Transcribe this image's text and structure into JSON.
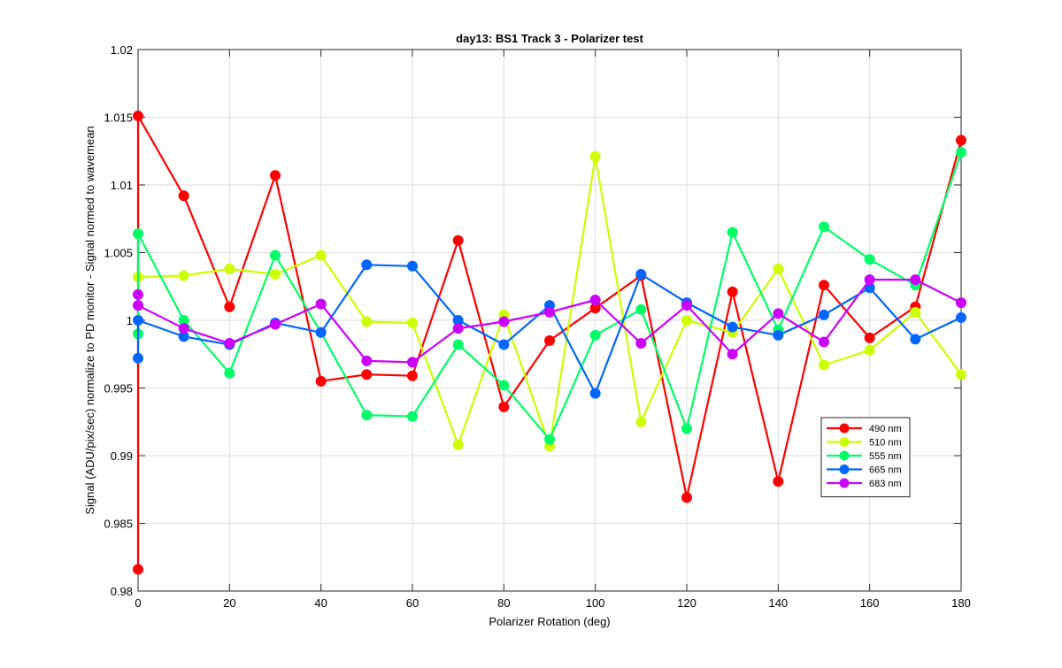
{
  "chart_data": {
    "type": "line",
    "title": "day13: BS1  Track 3 - Polarizer test",
    "xlabel": "Polarizer Rotation (deg)",
    "ylabel": "Signal (ADU/pix/sec) normalize to PD monitor - Signal normed to wavemean",
    "xlim": [
      0,
      180
    ],
    "ylim": [
      0.98,
      1.02
    ],
    "xticks": [
      0,
      20,
      40,
      60,
      80,
      100,
      120,
      140,
      160,
      180
    ],
    "yticks": [
      0.98,
      0.985,
      0.99,
      0.995,
      1,
      1.005,
      1.01,
      1.015,
      1.02
    ],
    "xtick_labels": [
      "0",
      "20",
      "40",
      "60",
      "80",
      "100",
      "120",
      "140",
      "160",
      "180"
    ],
    "ytick_labels": [
      "0.98",
      "0.985",
      "0.99",
      "0.995",
      "1",
      "1.005",
      "1.01",
      "1.015",
      "1.02"
    ],
    "grid": true,
    "legend_position": "lower-right",
    "series": [
      {
        "name": "490 nm",
        "color": "#ff0000",
        "x": [
          0,
          0,
          10,
          20,
          30,
          40,
          50,
          60,
          70,
          80,
          90,
          100,
          110,
          120,
          130,
          140,
          150,
          160,
          170,
          180
        ],
        "y": [
          0.9816,
          1.0151,
          1.0092,
          1.001,
          1.0107,
          0.9955,
          0.996,
          0.9959,
          1.0059,
          0.9936,
          0.9985,
          1.0009,
          1.0033,
          0.9869,
          1.0021,
          0.9881,
          1.0026,
          0.9987,
          1.001,
          1.0133
        ]
      },
      {
        "name": "510 nm",
        "color": "#ccff00",
        "x": [
          0,
          10,
          20,
          30,
          40,
          50,
          60,
          70,
          80,
          90,
          100,
          110,
          120,
          130,
          140,
          150,
          160,
          170,
          180
        ],
        "y": [
          1.0032,
          1.0033,
          1.0038,
          1.0034,
          1.0048,
          0.9999,
          0.9998,
          0.9908,
          1.0004,
          0.9907,
          1.0121,
          0.9925,
          1.0,
          0.9991,
          1.0038,
          0.9967,
          0.9978,
          1.0006,
          0.996
        ]
      },
      {
        "name": "555 nm",
        "color": "#00ff66",
        "x": [
          0,
          0,
          10,
          20,
          30,
          40,
          50,
          60,
          70,
          80,
          90,
          100,
          110,
          120,
          130,
          140,
          150,
          160,
          170,
          180
        ],
        "y": [
          0.999,
          1.0064,
          1.0,
          0.9961,
          1.0048,
          0.9991,
          0.993,
          0.9929,
          0.9982,
          0.9952,
          0.9912,
          0.9989,
          1.0008,
          0.992,
          1.0065,
          0.9993,
          1.0069,
          1.0045,
          1.0026,
          1.0124
        ]
      },
      {
        "name": "665 nm",
        "color": "#0066ff",
        "x": [
          0,
          0,
          10,
          20,
          30,
          40,
          50,
          60,
          70,
          80,
          90,
          100,
          110,
          120,
          130,
          140,
          150,
          160,
          170,
          180
        ],
        "y": [
          0.9972,
          1.0,
          0.9988,
          0.9982,
          0.9998,
          0.9991,
          1.0041,
          1.004,
          1.0,
          0.9982,
          1.0011,
          0.9946,
          1.0034,
          1.0013,
          0.9995,
          0.9989,
          1.0004,
          1.0024,
          0.9986,
          1.0002
        ]
      },
      {
        "name": "683 nm",
        "color": "#cc00ff",
        "x": [
          0,
          0,
          10,
          20,
          30,
          40,
          50,
          60,
          70,
          80,
          90,
          100,
          110,
          120,
          130,
          140,
          150,
          160,
          170,
          180
        ],
        "y": [
          1.0019,
          1.0011,
          0.9994,
          0.9983,
          0.9997,
          1.0012,
          0.997,
          0.9969,
          0.9994,
          0.9999,
          1.0006,
          1.0015,
          0.9983,
          1.0011,
          0.9975,
          1.0005,
          0.9984,
          1.003,
          1.003,
          1.0013
        ]
      }
    ]
  }
}
